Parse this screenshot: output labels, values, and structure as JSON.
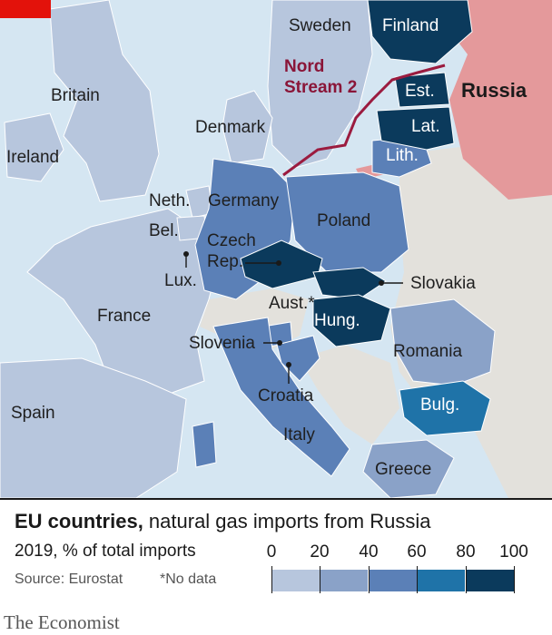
{
  "colors": {
    "sea": "#d5e6f2",
    "no_data": "#e3e1dc",
    "russia": "#e4999b",
    "pipeline": "#9b1b3f",
    "brand_red": "#e3120b",
    "bins": [
      "#b7c6dd",
      "#8aa2c8",
      "#5b80b7",
      "#1f73a8",
      "#0b3a5c"
    ]
  },
  "map": {
    "countries": {
      "sweden": "Sweden",
      "finland": "Finland",
      "russia": "Russia",
      "britain": "Britain",
      "ireland": "Ireland",
      "denmark": "Denmark",
      "estonia": "Est.",
      "latvia": "Lat.",
      "lithuania": "Lith.",
      "netherlands": "Neth.",
      "germany": "Germany",
      "poland": "Poland",
      "belgium": "Bel.",
      "czech_line1": "Czech",
      "czech_line2": "Rep.",
      "luxembourg": "Lux.",
      "slovakia": "Slovakia",
      "austria": "Aust.*",
      "france": "France",
      "hungary": "Hung.",
      "slovenia": "Slovenia",
      "romania": "Romania",
      "croatia": "Croatia",
      "spain": "Spain",
      "bulgaria": "Bulg.",
      "italy": "Italy",
      "greece": "Greece"
    },
    "pipeline_line1": "Nord",
    "pipeline_line2": "Stream 2"
  },
  "legend": {
    "title_bold": "EU countries,",
    "title_rest": " natural gas imports from Russia",
    "subtitle": "2019, % of total imports",
    "source": "Source: Eurostat",
    "note": "*No data",
    "ticks": [
      "0",
      "20",
      "40",
      "60",
      "80",
      "100"
    ]
  },
  "brand": "The Economist"
}
